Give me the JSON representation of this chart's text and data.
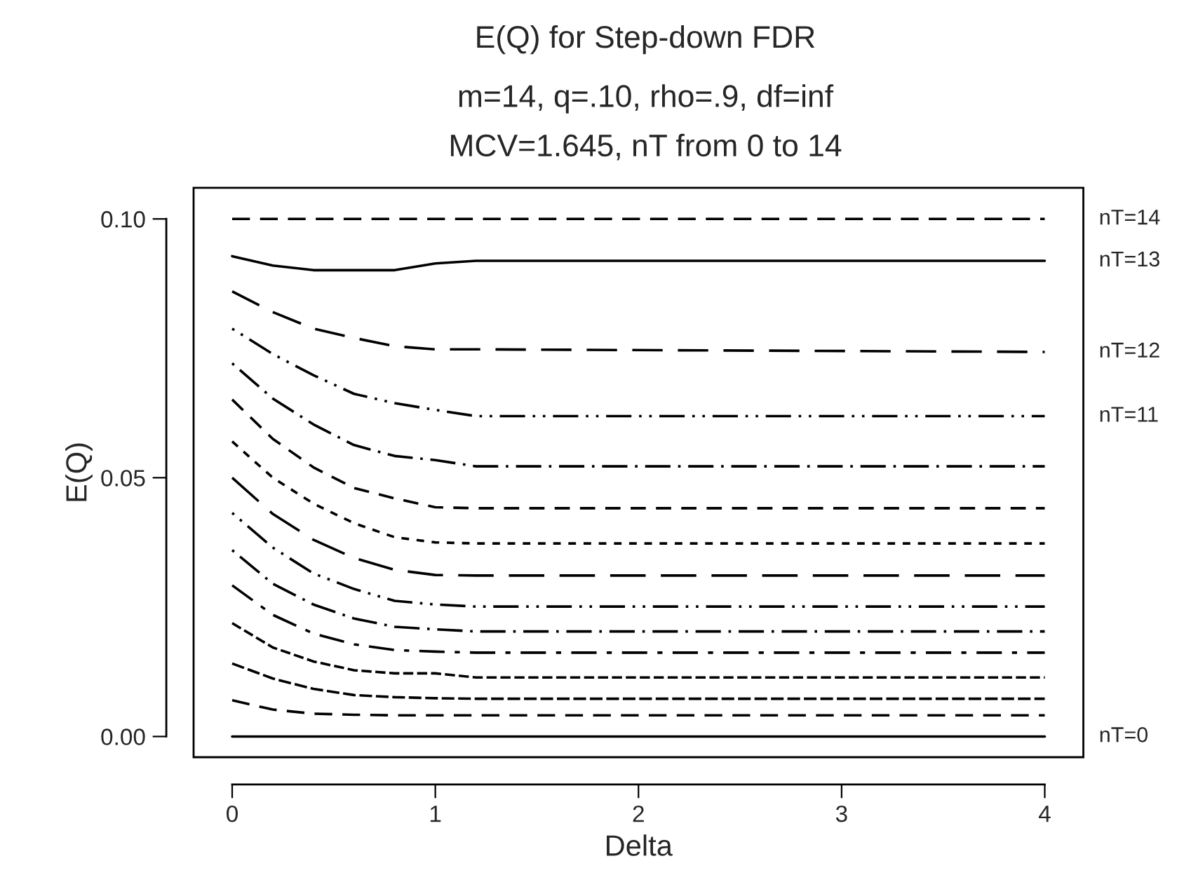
{
  "chart_data": {
    "type": "line",
    "title": "E(Q) for Step-down FDR",
    "subtitle": "m=14, q=.10, rho=.9, df=inf\nMCV=1.645, nT from 0 to 14",
    "xlabel": "Delta",
    "ylabel": "E(Q)",
    "x": [
      0,
      0.2,
      0.4,
      0.6,
      0.8,
      1.0,
      1.2,
      4
    ],
    "xlim": [
      -0.19,
      4.19
    ],
    "xticks": [
      0,
      1,
      2,
      3,
      4
    ],
    "ylim": [
      -0.004,
      0.106
    ],
    "yticks": [
      {
        "value": 0,
        "label": "0.00"
      },
      {
        "value": 0.05,
        "label": "0.05"
      },
      {
        "value": 0.1,
        "label": "0.10"
      }
    ],
    "grid": false,
    "marker": "none",
    "series": [
      {
        "name": "nT=14",
        "color": "#000000",
        "line_style": "dashed",
        "values": [
          0.1,
          0.1,
          0.1,
          0.1,
          0.1,
          0.1,
          0.1,
          0.1
        ]
      },
      {
        "name": "nT=13",
        "color": "#000000",
        "line_style": "solid",
        "values": [
          0.0928,
          0.091,
          0.0901,
          0.0901,
          0.0901,
          0.0914,
          0.0919,
          0.0919
        ]
      },
      {
        "name": "nT=12",
        "color": "#000000",
        "line_style": "dashed",
        "values": [
          0.086,
          0.082,
          0.0788,
          0.077,
          0.0754,
          0.0748,
          0.0748,
          0.0743
        ]
      },
      {
        "name": "nT=11",
        "color": "#000000",
        "line_style": "dashed",
        "values": [
          0.0788,
          0.0739,
          0.0698,
          0.0662,
          0.0644,
          0.0631,
          0.0619,
          0.0619
        ]
      },
      {
        "color": "#000000",
        "line_style": "dashed",
        "values": [
          0.0721,
          0.0653,
          0.0603,
          0.0563,
          0.0542,
          0.0534,
          0.0522,
          0.0522
        ]
      },
      {
        "color": "#000000",
        "line_style": "dashed",
        "values": [
          0.0651,
          0.0575,
          0.052,
          0.048,
          0.046,
          0.0443,
          0.0441,
          0.0441
        ]
      },
      {
        "color": "#000000",
        "line_style": "dashed",
        "values": [
          0.057,
          0.05,
          0.045,
          0.0412,
          0.0385,
          0.0375,
          0.0373,
          0.0373
        ]
      },
      {
        "color": "#000000",
        "line_style": "dashed",
        "values": [
          0.05,
          0.043,
          0.038,
          0.0345,
          0.0322,
          0.0312,
          0.0311,
          0.0311
        ]
      },
      {
        "color": "#000000",
        "line_style": "dashed",
        "values": [
          0.0432,
          0.0365,
          0.0315,
          0.0285,
          0.0262,
          0.0255,
          0.0251,
          0.0251
        ]
      },
      {
        "color": "#000000",
        "line_style": "dashed",
        "values": [
          0.036,
          0.0295,
          0.0255,
          0.0228,
          0.0212,
          0.0207,
          0.0203,
          0.0203
        ]
      },
      {
        "color": "#000000",
        "line_style": "dashed",
        "values": [
          0.0292,
          0.0235,
          0.0199,
          0.0178,
          0.0167,
          0.0164,
          0.0162,
          0.0162
        ]
      },
      {
        "color": "#000000",
        "line_style": "dashed",
        "values": [
          0.0219,
          0.0172,
          0.0145,
          0.0128,
          0.0122,
          0.0122,
          0.0114,
          0.0114
        ]
      },
      {
        "color": "#000000",
        "line_style": "dashed",
        "values": [
          0.0141,
          0.0112,
          0.0092,
          0.008,
          0.0076,
          0.0074,
          0.0073,
          0.0073
        ]
      },
      {
        "color": "#000000",
        "line_style": "dashed",
        "values": [
          0.007,
          0.0052,
          0.0044,
          0.0042,
          0.0041,
          0.0041,
          0.0041,
          0.0041
        ]
      },
      {
        "name": "nT=0",
        "color": "#000000",
        "line_style": "solid",
        "values": [
          0,
          0,
          0,
          0,
          0,
          0,
          0,
          0
        ]
      }
    ]
  }
}
